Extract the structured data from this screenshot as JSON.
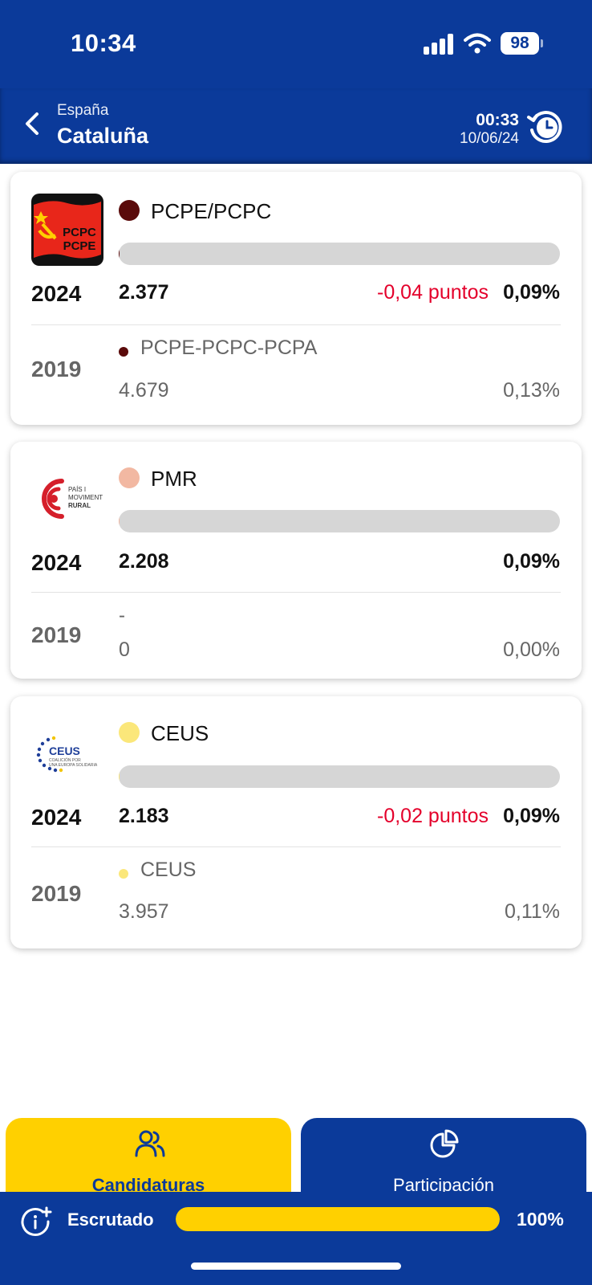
{
  "status_bar": {
    "time": "10:34",
    "battery": "98"
  },
  "header": {
    "parent": "España",
    "title": "Cataluña",
    "time": "00:33",
    "date": "10/06/24"
  },
  "cards": [
    {
      "logo_icon": "pcpc-pcpe-logo",
      "logo_text": [
        "PCPC",
        "PCPE"
      ],
      "color": "#5a0a0a",
      "name": "PCPE/PCPC",
      "year_current": "2024",
      "votes": "2.377",
      "diff": "-0,04 puntos",
      "pct": "0,09%",
      "pct_value": 0.09,
      "year_prev": "2019",
      "prev_color": "#5a0a0a",
      "prev_name": "PCPE-PCPC-PCPA",
      "prev_votes": "4.679",
      "prev_pct": "0,13%"
    },
    {
      "logo_icon": "pais-i-moviment-rural-logo",
      "logo_text": [
        "PAÍS I",
        "MOVIMENT",
        "RURAL"
      ],
      "color": "#f2b8a2",
      "name": "PMR",
      "year_current": "2024",
      "votes": "2.208",
      "diff": "",
      "pct": "0,09%",
      "pct_value": 0.09,
      "year_prev": "2019",
      "prev_name": "-",
      "prev_votes": "0",
      "prev_pct": "0,00%"
    },
    {
      "logo_icon": "ceus-logo",
      "logo_text": [
        "CEUS",
        "COALICIÓN POR",
        "UNA EUROPA SOLIDARIA"
      ],
      "color": "#fbe77a",
      "name": "CEUS",
      "year_current": "2024",
      "votes": "2.183",
      "diff": "-0,02 puntos",
      "pct": "0,09%",
      "pct_value": 0.09,
      "year_prev": "2019",
      "prev_color": "#fbe77a",
      "prev_name": "CEUS",
      "prev_votes": "3.957",
      "prev_pct": "0,11%"
    }
  ],
  "tabs": [
    {
      "label": "Candidaturas",
      "icon": "people-icon",
      "active": true
    },
    {
      "label": "Participación",
      "icon": "pie-chart-icon",
      "active": false
    }
  ],
  "footer": {
    "label": "Escrutado",
    "progress": "100%",
    "progress_value": 100
  },
  "colors": {
    "brand_blue": "#0b3a9a",
    "accent_yellow": "#ffd000",
    "diff_red": "#e4002b"
  }
}
